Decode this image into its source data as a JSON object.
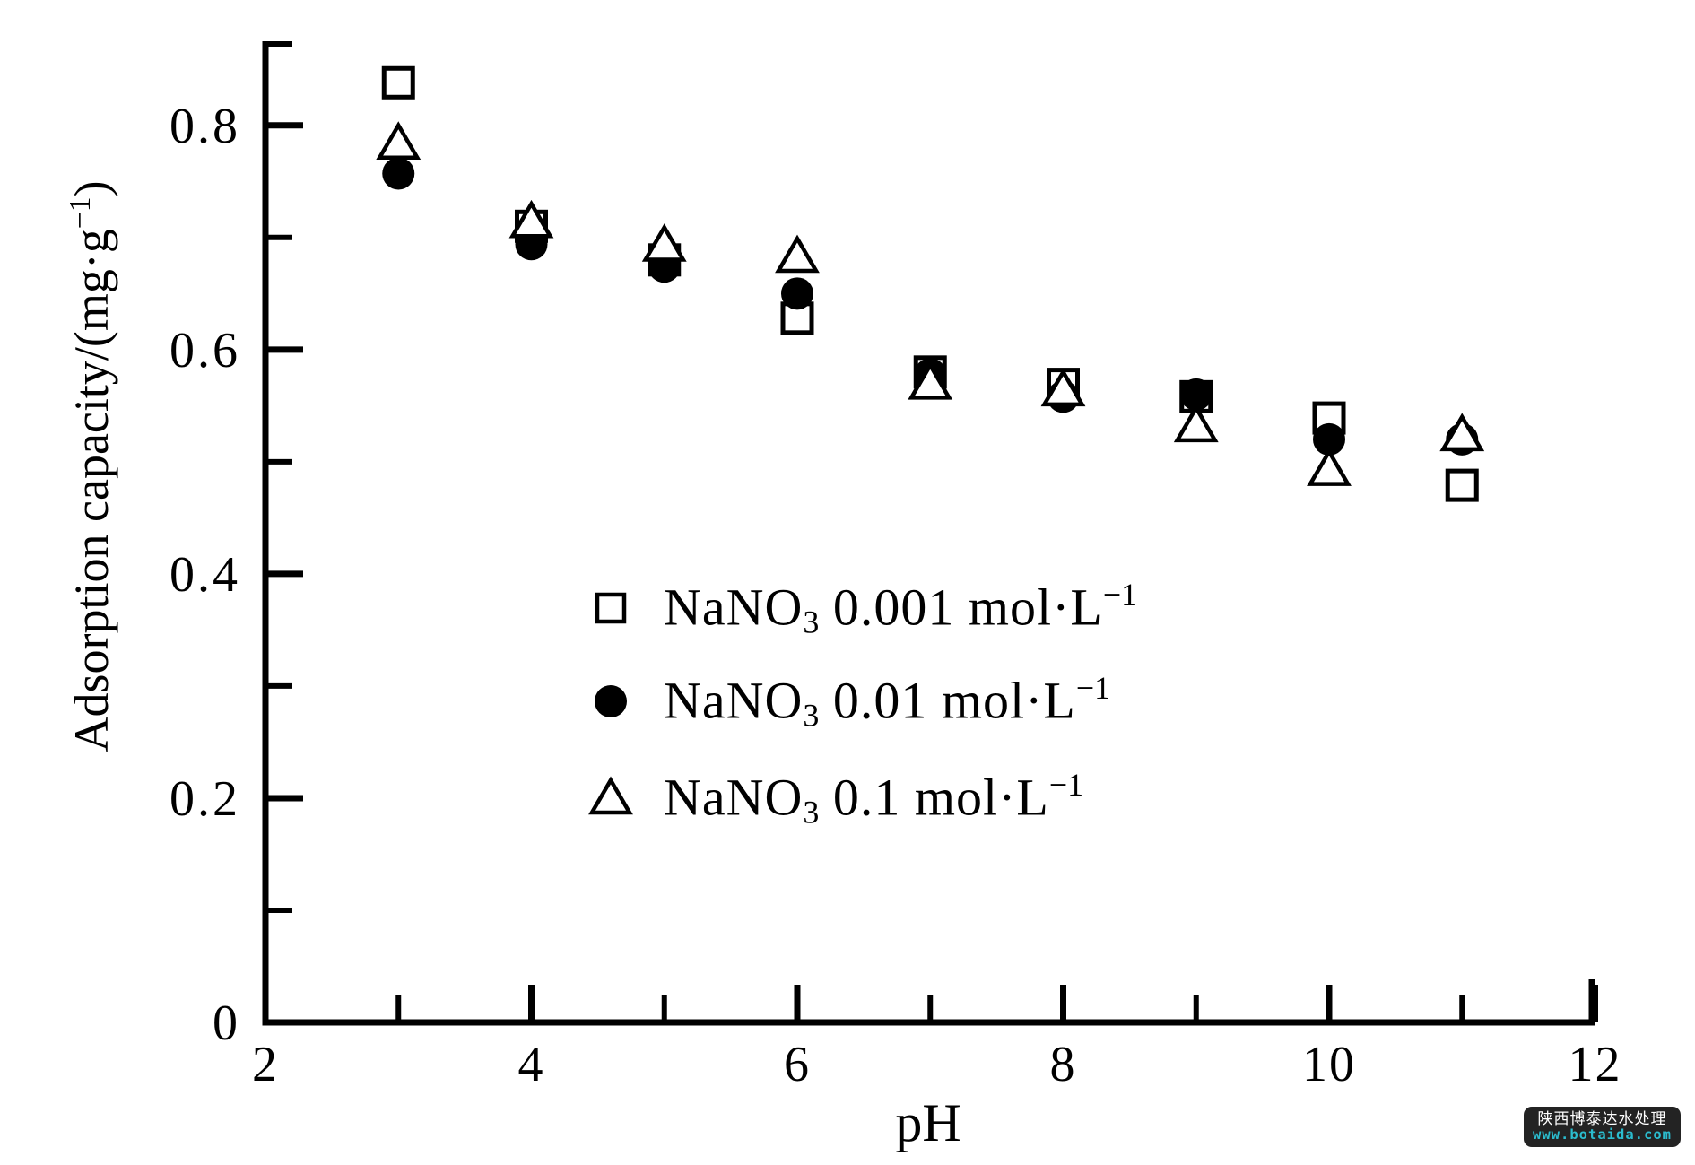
{
  "chart_data": {
    "type": "scatter",
    "title": "",
    "xlabel": "pH",
    "ylabel": "Adsorption capacity/(mg·g^-1)",
    "ylabel_parts": {
      "base": "Adsorption capacity/(mg·g",
      "sup": "−1",
      "close": ")"
    },
    "xlim": [
      2,
      12
    ],
    "ylim": [
      0,
      0.875
    ],
    "grid": false,
    "legend_position": "inside center-left",
    "x": [
      3,
      4,
      5,
      6,
      7,
      8,
      9,
      10,
      11
    ],
    "series": [
      {
        "name": "NaNO3 0.001 mol·L^-1",
        "marker": "open-square",
        "values": [
          0.838,
          0.71,
          0.68,
          0.628,
          0.58,
          0.569,
          0.558,
          0.539,
          0.479
        ]
      },
      {
        "name": "NaNO3 0.01 mol·L^-1",
        "marker": "filled-circle",
        "values": [
          0.757,
          0.694,
          0.674,
          0.65,
          0.578,
          0.558,
          0.56,
          0.52,
          0.52
        ]
      },
      {
        "name": "NaNO3 0.1 mol·L^-1",
        "marker": "open-triangle",
        "values": [
          0.784,
          0.714,
          0.693,
          0.683,
          0.57,
          0.564,
          0.532,
          0.493,
          0.524
        ]
      }
    ],
    "x_major_ticks": [
      4,
      6,
      8,
      10,
      12
    ],
    "x_minor_ticks": [
      3,
      5,
      7,
      9,
      11
    ],
    "x_tick_labels": [
      {
        "v": 2,
        "t": "2"
      },
      {
        "v": 4,
        "t": "4"
      },
      {
        "v": 6,
        "t": "6"
      },
      {
        "v": 8,
        "t": "8"
      },
      {
        "v": 10,
        "t": "10"
      },
      {
        "v": 12,
        "t": "12"
      }
    ],
    "y_major_ticks": [
      0.2,
      0.4,
      0.6,
      0.8
    ],
    "y_minor_ticks": [
      0.1,
      0.3,
      0.5,
      0.7
    ],
    "y_tick_labels": [
      {
        "v": 0,
        "t": "0"
      },
      {
        "v": 0.2,
        "t": "0.2"
      },
      {
        "v": 0.4,
        "t": "0.4"
      },
      {
        "v": 0.6,
        "t": "0.6"
      },
      {
        "v": 0.8,
        "t": "0.8"
      }
    ]
  },
  "legend": {
    "items": [
      {
        "marker": "open-square",
        "base": "NaNO",
        "sub": "3",
        "mid": " 0.001 mol·L",
        "sup": "−1"
      },
      {
        "marker": "filled-circle",
        "base": "NaNO",
        "sub": "3",
        "mid": " 0.01 mol·L",
        "sup": "−1"
      },
      {
        "marker": "open-triangle",
        "base": "NaNO",
        "sub": "3",
        "mid": " 0.1 mol·L",
        "sup": "−1"
      }
    ]
  },
  "watermark": {
    "line1": "陕西博泰达水处理",
    "line2": "www.botaida.com",
    "bg_color": "#232323",
    "line1_color": "#ffffff",
    "line2_color": "#2bbcce"
  },
  "colors": {
    "ink": "#000000",
    "background": "#ffffff"
  }
}
